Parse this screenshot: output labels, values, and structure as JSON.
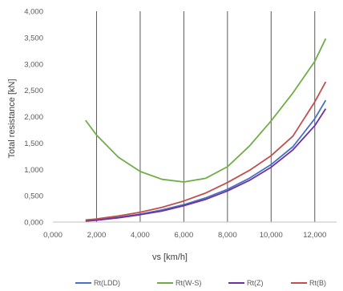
{
  "chart_data": {
    "type": "line",
    "title": "",
    "xlabel": "vs [km/h]",
    "ylabel": "Total resistance [kN]",
    "xlim": [
      0,
      13000
    ],
    "ylim": [
      0,
      4000
    ],
    "x_ticks": [
      0,
      2000,
      4000,
      6000,
      8000,
      10000,
      12000
    ],
    "x_tick_labels": [
      "0,000",
      "2,000",
      "4,000",
      "6,000",
      "8,000",
      "10,000",
      "12,000"
    ],
    "y_ticks": [
      0,
      500,
      1000,
      1500,
      2000,
      2500,
      3000,
      3500,
      4000
    ],
    "y_tick_labels": [
      "0,000",
      "0,500",
      "1,000",
      "1,500",
      "2,000",
      "2,500",
      "3,000",
      "3,500",
      "4,000"
    ],
    "grid": "vertical",
    "legend_position": "bottom",
    "x": [
      1500,
      2000,
      3000,
      4000,
      5000,
      6000,
      7000,
      8000,
      9000,
      10000,
      11000,
      12000,
      12500
    ],
    "series": [
      {
        "name": "Rt(LDD)",
        "color": "#4472c4",
        "values": [
          30,
          45,
          90,
          150,
          230,
          330,
          460,
          620,
          830,
          1090,
          1430,
          1960,
          2310
        ]
      },
      {
        "name": "Rt(W-S)",
        "color": "#70ad47",
        "values": [
          1930,
          1650,
          1230,
          960,
          810,
          760,
          830,
          1050,
          1440,
          1920,
          2450,
          3050,
          3480
        ]
      },
      {
        "name": "Rt(Z)",
        "color": "#7030a0",
        "values": [
          20,
          35,
          80,
          140,
          210,
          310,
          430,
          590,
          790,
          1040,
          1370,
          1830,
          2150
        ]
      },
      {
        "name": "Rt(B)",
        "color": "#c0504d",
        "values": [
          40,
          60,
          115,
          185,
          280,
          400,
          550,
          750,
          980,
          1260,
          1630,
          2280,
          2660
        ]
      }
    ]
  }
}
